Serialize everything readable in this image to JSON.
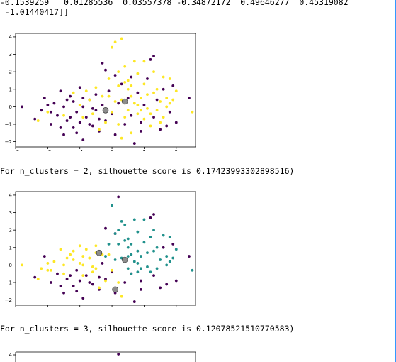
{
  "output_text": {
    "array_line1": "-0.1539259   0.01285536  0.03557378 -0.34872172  0.49646277  0.45319082",
    "array_line2": " -1.01440417]]",
    "score_line_2": "For n_clusters = 2, silhouette score is 0.17423993302898516)",
    "score_line_3": "For n_clusters = 3, silhouette score is 0.12078521510770583)"
  },
  "colors": {
    "cluster_purple": "#440154",
    "cluster_teal": "#21918c",
    "cluster_yellow": "#fde725",
    "centroid": "#808080",
    "accent_border": "#3399ff"
  },
  "chart_data": [
    {
      "type": "scatter",
      "title": "",
      "xlabel": "",
      "ylabel": "",
      "xlim": [
        -3,
        2.6
      ],
      "ylim": [
        -2.3,
        4.2
      ],
      "xticks": [
        "−3",
        "−2",
        "−1",
        "0",
        "1",
        "2"
      ],
      "yticks": [
        "−2",
        "−1",
        "0",
        "1",
        "2",
        "3",
        "4"
      ],
      "series": [
        {
          "name": "cluster 0",
          "color": "#440154",
          "points": [
            [
              -2.8,
              0
            ],
            [
              -2.4,
              -0.7
            ],
            [
              -2.2,
              -0.2
            ],
            [
              -2.1,
              0.5
            ],
            [
              -1.9,
              -1.0
            ],
            [
              -1.8,
              0.2
            ],
            [
              -1.7,
              -0.5
            ],
            [
              -1.6,
              0.9
            ],
            [
              -1.5,
              -1.6
            ],
            [
              -1.5,
              0.0
            ],
            [
              -1.4,
              -0.8
            ],
            [
              -1.3,
              0.6
            ],
            [
              -1.2,
              -1.2
            ],
            [
              -1.2,
              0.3
            ],
            [
              -1.1,
              -0.3
            ],
            [
              -1.0,
              1.1
            ],
            [
              -0.9,
              -1.9
            ],
            [
              -0.9,
              0.0
            ],
            [
              -0.8,
              -0.6
            ],
            [
              -0.7,
              0.4
            ],
            [
              -0.6,
              -1.1
            ],
            [
              -0.5,
              0.7
            ],
            [
              -0.5,
              -0.2
            ],
            [
              -0.4,
              -1.4
            ],
            [
              -0.3,
              0.1
            ],
            [
              -0.3,
              2.5
            ],
            [
              -0.2,
              -0.8
            ],
            [
              -0.1,
              0.9
            ],
            [
              0.0,
              -0.4
            ],
            [
              0.1,
              -1.6
            ],
            [
              0.2,
              0.2
            ],
            [
              0.3,
              1.3
            ],
            [
              0.4,
              -1.0
            ],
            [
              0.5,
              0.5
            ],
            [
              0.6,
              -0.5
            ],
            [
              0.7,
              -2.1
            ],
            [
              0.8,
              0.8
            ],
            [
              0.9,
              -0.9
            ],
            [
              1.0,
              0.1
            ],
            [
              1.1,
              1.6
            ],
            [
              1.2,
              2.7
            ],
            [
              1.3,
              -0.6
            ],
            [
              1.4,
              0.4
            ],
            [
              1.5,
              -1.3
            ],
            [
              1.6,
              1.0
            ],
            [
              1.8,
              -0.3
            ],
            [
              1.9,
              1.2
            ],
            [
              2.4,
              0.5
            ],
            [
              -1.9,
              -0.3
            ],
            [
              -1.3,
              -0.6
            ],
            [
              -0.7,
              -1.0
            ],
            [
              -2.0,
              0.1
            ],
            [
              -1.6,
              -1.2
            ],
            [
              -1.0,
              -0.9
            ],
            [
              -0.6,
              -0.1
            ],
            [
              -1.4,
              0.4
            ],
            [
              -0.9,
              0.5
            ],
            [
              0.1,
              1.8
            ],
            [
              -0.2,
              2.1
            ],
            [
              1.3,
              2.9
            ],
            [
              0.6,
              1.7
            ],
            [
              -1.1,
              -1.5
            ],
            [
              -0.4,
              -0.7
            ],
            [
              0.9,
              -1.4
            ],
            [
              1.7,
              -1.1
            ],
            [
              2.0,
              -0.9
            ]
          ]
        },
        {
          "name": "cluster 1",
          "color": "#fde725",
          "points": [
            [
              -2.3,
              -0.8
            ],
            [
              -2.0,
              -0.3
            ],
            [
              -1.5,
              -0.5
            ],
            [
              -1.2,
              0.8
            ],
            [
              -0.8,
              0.9
            ],
            [
              -0.6,
              -0.4
            ],
            [
              -0.3,
              0.6
            ],
            [
              -0.2,
              -0.9
            ],
            [
              -0.1,
              1.6
            ],
            [
              0.0,
              3.4
            ],
            [
              0.1,
              3.7
            ],
            [
              0.2,
              2.0
            ],
            [
              0.3,
              0.4
            ],
            [
              0.4,
              -0.6
            ],
            [
              0.5,
              1.0
            ],
            [
              0.6,
              -1.5
            ],
            [
              0.7,
              2.6
            ],
            [
              0.8,
              0.1
            ],
            [
              0.9,
              -0.2
            ],
            [
              1.0,
              1.3
            ],
            [
              1.1,
              0.7
            ],
            [
              1.2,
              -0.4
            ],
            [
              1.3,
              2.0
            ],
            [
              1.4,
              1.0
            ],
            [
              1.5,
              -0.9
            ],
            [
              1.6,
              1.7
            ],
            [
              1.7,
              0.5
            ],
            [
              1.8,
              1.6
            ],
            [
              2.0,
              0.9
            ],
            [
              2.5,
              -0.3
            ],
            [
              0.3,
              3.9
            ],
            [
              0.8,
              1.9
            ],
            [
              0.4,
              2.3
            ],
            [
              1.0,
              2.6
            ],
            [
              1.7,
              0.0
            ],
            [
              1.2,
              -1.1
            ],
            [
              0.6,
              0.6
            ],
            [
              -0.4,
              -1.3
            ],
            [
              0.2,
              -1.0
            ],
            [
              0.5,
              -0.2
            ],
            [
              0.9,
              0.5
            ],
            [
              0.1,
              0.3
            ],
            [
              0.3,
              -1.8
            ],
            [
              1.0,
              -0.7
            ],
            [
              0.7,
              0.2
            ],
            [
              0.4,
              1.4
            ],
            [
              1.5,
              0.3
            ],
            [
              1.9,
              0.4
            ],
            [
              0.6,
              1.2
            ],
            [
              -0.7,
              0.4
            ],
            [
              -0.1,
              0.6
            ],
            [
              0.2,
              1.2
            ],
            [
              1.1,
              -0.1
            ],
            [
              0.8,
              -0.4
            ],
            [
              1.3,
              0.8
            ],
            [
              -1.0,
              0.1
            ],
            [
              -0.5,
              1.1
            ],
            [
              1.6,
              -0.6
            ],
            [
              0.0,
              -0.3
            ],
            [
              0.5,
              1.5
            ],
            [
              1.4,
              -0.2
            ],
            [
              -0.9,
              -0.6
            ],
            [
              1.8,
              0.2
            ]
          ]
        }
      ],
      "centroids": [
        [
          -0.2,
          -0.2
        ],
        [
          0.4,
          0.3
        ]
      ]
    },
    {
      "type": "scatter",
      "title": "",
      "xlabel": "",
      "ylabel": "",
      "xlim": [
        -3,
        2.6
      ],
      "ylim": [
        -2.3,
        4.2
      ],
      "xticks": [
        "−3",
        "−2",
        "−1",
        "0",
        "1",
        "2"
      ],
      "yticks": [
        "−2",
        "−1",
        "0",
        "1",
        "2",
        "3",
        "4"
      ],
      "series": [
        {
          "name": "cluster 0",
          "color": "#440154",
          "points": [
            [
              -2.4,
              -0.7
            ],
            [
              -2.1,
              0.5
            ],
            [
              -1.9,
              -1.0
            ],
            [
              -1.7,
              -0.5
            ],
            [
              -1.5,
              -1.6
            ],
            [
              -1.4,
              -0.8
            ],
            [
              -1.2,
              -1.2
            ],
            [
              -1.1,
              -0.3
            ],
            [
              -0.9,
              -1.9
            ],
            [
              -0.8,
              -0.6
            ],
            [
              -0.6,
              -1.1
            ],
            [
              -0.4,
              -1.4
            ],
            [
              -0.2,
              -0.8
            ],
            [
              0.0,
              -0.4
            ],
            [
              0.1,
              -1.6
            ],
            [
              0.4,
              -1.0
            ],
            [
              0.6,
              -0.5
            ],
            [
              0.7,
              -2.1
            ],
            [
              0.9,
              -0.9
            ],
            [
              1.3,
              -0.6
            ],
            [
              1.5,
              -1.3
            ],
            [
              1.7,
              -1.1
            ],
            [
              2.0,
              -0.9
            ],
            [
              -1.1,
              -1.5
            ],
            [
              -0.4,
              -0.7
            ],
            [
              0.9,
              -1.4
            ],
            [
              -1.6,
              -1.2
            ],
            [
              -1.0,
              -0.9
            ],
            [
              -0.7,
              -1.0
            ],
            [
              -1.3,
              -0.6
            ],
            [
              1.2,
              2.7
            ],
            [
              1.3,
              2.9
            ],
            [
              0.1,
              1.8
            ],
            [
              -0.2,
              2.1
            ],
            [
              2.4,
              0.5
            ],
            [
              1.9,
              1.2
            ],
            [
              1.6,
              1.0
            ],
            [
              -0.3,
              0.1
            ],
            [
              0.2,
              3.9
            ]
          ]
        },
        {
          "name": "cluster 1",
          "color": "#21918c",
          "points": [
            [
              0.1,
              1.8
            ],
            [
              0.2,
              2.0
            ],
            [
              0.3,
              0.4
            ],
            [
              0.5,
              1.0
            ],
            [
              0.5,
              0.5
            ],
            [
              0.6,
              -0.5
            ],
            [
              0.7,
              2.6
            ],
            [
              0.8,
              0.1
            ],
            [
              0.9,
              -0.2
            ],
            [
              1.0,
              1.3
            ],
            [
              1.1,
              0.7
            ],
            [
              1.2,
              -0.4
            ],
            [
              1.3,
              2.0
            ],
            [
              1.4,
              1.0
            ],
            [
              1.6,
              1.7
            ],
            [
              1.7,
              0.5
            ],
            [
              1.8,
              1.6
            ],
            [
              2.0,
              0.9
            ],
            [
              2.5,
              -0.3
            ],
            [
              0.8,
              1.9
            ],
            [
              0.4,
              2.3
            ],
            [
              1.0,
              2.6
            ],
            [
              1.7,
              0.0
            ],
            [
              0.6,
              0.6
            ],
            [
              0.5,
              -0.2
            ],
            [
              0.9,
              0.5
            ],
            [
              0.1,
              0.3
            ],
            [
              0.7,
              0.2
            ],
            [
              0.4,
              1.4
            ],
            [
              1.5,
              0.3
            ],
            [
              1.9,
              0.4
            ],
            [
              0.6,
              1.2
            ],
            [
              0.2,
              1.2
            ],
            [
              1.1,
              -0.1
            ],
            [
              0.8,
              -0.4
            ],
            [
              1.3,
              0.8
            ],
            [
              0.5,
              1.5
            ],
            [
              1.4,
              -0.2
            ],
            [
              1.8,
              0.2
            ],
            [
              0.0,
              3.4
            ],
            [
              0.3,
              2.5
            ],
            [
              -0.2,
              0.5
            ],
            [
              -0.1,
              1.2
            ],
            [
              1.2,
              1.6
            ],
            [
              0.8,
              0.8
            ]
          ]
        },
        {
          "name": "cluster 2",
          "color": "#fde725",
          "points": [
            [
              -2.8,
              0
            ],
            [
              -2.3,
              -0.8
            ],
            [
              -2.2,
              -0.2
            ],
            [
              -2.0,
              -0.3
            ],
            [
              -1.8,
              0.2
            ],
            [
              -1.6,
              0.9
            ],
            [
              -1.5,
              0.0
            ],
            [
              -1.5,
              -0.5
            ],
            [
              -1.3,
              0.6
            ],
            [
              -1.2,
              0.3
            ],
            [
              -1.2,
              0.8
            ],
            [
              -1.0,
              1.1
            ],
            [
              -0.9,
              0.0
            ],
            [
              -0.8,
              0.9
            ],
            [
              -0.7,
              0.4
            ],
            [
              -0.6,
              -0.4
            ],
            [
              -0.5,
              0.7
            ],
            [
              -0.5,
              -0.2
            ],
            [
              -0.3,
              0.6
            ],
            [
              -0.2,
              -0.9
            ],
            [
              -0.4,
              -1.3
            ],
            [
              -0.9,
              -0.6
            ],
            [
              -1.0,
              0.1
            ],
            [
              -0.5,
              1.1
            ],
            [
              -1.9,
              -0.3
            ],
            [
              -2.0,
              0.1
            ],
            [
              -1.4,
              0.4
            ],
            [
              -0.9,
              0.5
            ],
            [
              -0.6,
              -0.1
            ],
            [
              0.0,
              -0.3
            ],
            [
              0.2,
              -1.0
            ],
            [
              0.3,
              -1.8
            ],
            [
              -0.1,
              0.6
            ],
            [
              -0.7,
              0.4
            ]
          ]
        }
      ],
      "centroids": [
        [
          -0.4,
          0.7
        ],
        [
          0.4,
          0.3
        ],
        [
          0.1,
          -1.4
        ]
      ]
    },
    {
      "type": "scatter",
      "title": "",
      "ytick_visible": "4",
      "points_visible": [
        [
          0.2,
          3.9
        ]
      ]
    }
  ]
}
